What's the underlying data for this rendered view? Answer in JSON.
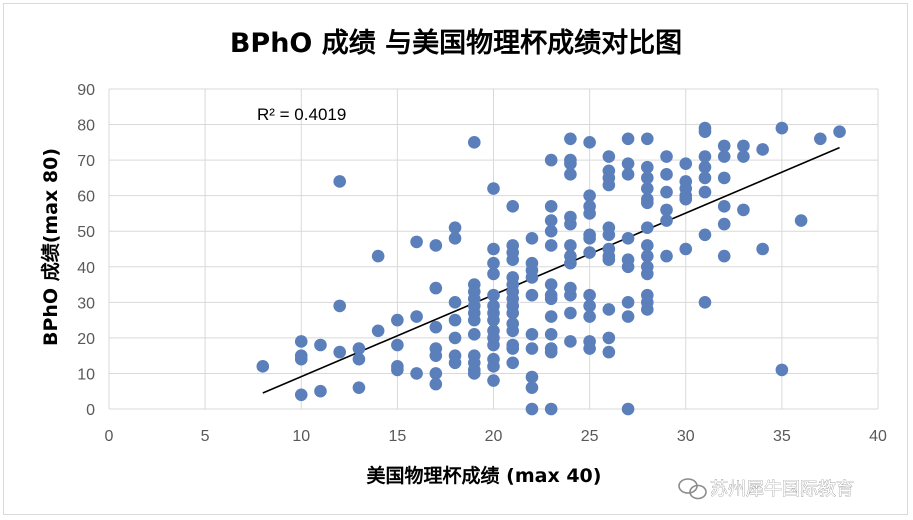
{
  "chart_data": {
    "type": "scatter",
    "title": "BPhO 成绩 与美国物理杯成绩对比图",
    "xlabel": "美国物理杯成绩 (max 40)",
    "ylabel": "BPhO 成绩(max 80)",
    "xlim": [
      0,
      40
    ],
    "ylim": [
      0,
      90
    ],
    "x_ticks": [
      0,
      5,
      10,
      15,
      20,
      25,
      30,
      35,
      40
    ],
    "y_ticks": [
      0,
      10,
      20,
      30,
      40,
      50,
      60,
      70,
      80,
      90
    ],
    "grid": true,
    "point_color": "#5b7fba",
    "trendline": {
      "type": "linear",
      "r2_label": "R² = 0.4019",
      "x": [
        8,
        38
      ],
      "y": [
        4.5,
        73.5
      ],
      "color": "#000000"
    },
    "points": [
      [
        8,
        12
      ],
      [
        10,
        19
      ],
      [
        10,
        15
      ],
      [
        10,
        14
      ],
      [
        10,
        4
      ],
      [
        11,
        18
      ],
      [
        11,
        5
      ],
      [
        12,
        64
      ],
      [
        12,
        29
      ],
      [
        12,
        16
      ],
      [
        13,
        17
      ],
      [
        13,
        14
      ],
      [
        13,
        6
      ],
      [
        14,
        43
      ],
      [
        14,
        22
      ],
      [
        15,
        25
      ],
      [
        15,
        18
      ],
      [
        15,
        12
      ],
      [
        15,
        11
      ],
      [
        16,
        47
      ],
      [
        16,
        26
      ],
      [
        16,
        10
      ],
      [
        17,
        46
      ],
      [
        17,
        34
      ],
      [
        17,
        23
      ],
      [
        17,
        17
      ],
      [
        17,
        15
      ],
      [
        17,
        10
      ],
      [
        17,
        7
      ],
      [
        18,
        51
      ],
      [
        18,
        48
      ],
      [
        18,
        30
      ],
      [
        18,
        25
      ],
      [
        18,
        20
      ],
      [
        18,
        15
      ],
      [
        18,
        13
      ],
      [
        19,
        75
      ],
      [
        19,
        35
      ],
      [
        19,
        33
      ],
      [
        19,
        31
      ],
      [
        19,
        29
      ],
      [
        19,
        27
      ],
      [
        19,
        25
      ],
      [
        19,
        21
      ],
      [
        19,
        15
      ],
      [
        19,
        13
      ],
      [
        19,
        11
      ],
      [
        19,
        10
      ],
      [
        20,
        62
      ],
      [
        20,
        45
      ],
      [
        20,
        41
      ],
      [
        20,
        38
      ],
      [
        20,
        32
      ],
      [
        20,
        29
      ],
      [
        20,
        27
      ],
      [
        20,
        25
      ],
      [
        20,
        22
      ],
      [
        20,
        20
      ],
      [
        20,
        18
      ],
      [
        20,
        14
      ],
      [
        20,
        12
      ],
      [
        20,
        8
      ],
      [
        21,
        57
      ],
      [
        21,
        46
      ],
      [
        21,
        44
      ],
      [
        21,
        42
      ],
      [
        21,
        37
      ],
      [
        21,
        35
      ],
      [
        21,
        33
      ],
      [
        21,
        31
      ],
      [
        21,
        29
      ],
      [
        21,
        27
      ],
      [
        21,
        24
      ],
      [
        21,
        22
      ],
      [
        21,
        18
      ],
      [
        21,
        17
      ],
      [
        21,
        13
      ],
      [
        22,
        48
      ],
      [
        22,
        41
      ],
      [
        22,
        39
      ],
      [
        22,
        37
      ],
      [
        22,
        32
      ],
      [
        22,
        21
      ],
      [
        22,
        17
      ],
      [
        22,
        9
      ],
      [
        22,
        6
      ],
      [
        22,
        0
      ],
      [
        23,
        70
      ],
      [
        23,
        57
      ],
      [
        23,
        53
      ],
      [
        23,
        50
      ],
      [
        23,
        46
      ],
      [
        23,
        35
      ],
      [
        23,
        32
      ],
      [
        23,
        31
      ],
      [
        23,
        26
      ],
      [
        23,
        21
      ],
      [
        23,
        17
      ],
      [
        23,
        16
      ],
      [
        23,
        0
      ],
      [
        24,
        76
      ],
      [
        24,
        70
      ],
      [
        24,
        69
      ],
      [
        24,
        66
      ],
      [
        24,
        54
      ],
      [
        24,
        52
      ],
      [
        24,
        46
      ],
      [
        24,
        43
      ],
      [
        24,
        41
      ],
      [
        24,
        34
      ],
      [
        24,
        32
      ],
      [
        24,
        27
      ],
      [
        24,
        19
      ],
      [
        25,
        75
      ],
      [
        25,
        60
      ],
      [
        25,
        57
      ],
      [
        25,
        55
      ],
      [
        25,
        49
      ],
      [
        25,
        48
      ],
      [
        25,
        44
      ],
      [
        25,
        32
      ],
      [
        25,
        29
      ],
      [
        25,
        26
      ],
      [
        25,
        19
      ],
      [
        25,
        17
      ],
      [
        26,
        71
      ],
      [
        26,
        67
      ],
      [
        26,
        65
      ],
      [
        26,
        63
      ],
      [
        26,
        51
      ],
      [
        26,
        49
      ],
      [
        26,
        45
      ],
      [
        26,
        43
      ],
      [
        26,
        42
      ],
      [
        26,
        28
      ],
      [
        26,
        20
      ],
      [
        26,
        16
      ],
      [
        27,
        76
      ],
      [
        27,
        69
      ],
      [
        27,
        66
      ],
      [
        27,
        48
      ],
      [
        27,
        42
      ],
      [
        27,
        40
      ],
      [
        27,
        30
      ],
      [
        27,
        26
      ],
      [
        27,
        0
      ],
      [
        28,
        76
      ],
      [
        28,
        68
      ],
      [
        28,
        65
      ],
      [
        28,
        62
      ],
      [
        28,
        59
      ],
      [
        28,
        58
      ],
      [
        28,
        51
      ],
      [
        28,
        46
      ],
      [
        28,
        43
      ],
      [
        28,
        40
      ],
      [
        28,
        38
      ],
      [
        28,
        32
      ],
      [
        28,
        30
      ],
      [
        28,
        28
      ],
      [
        29,
        71
      ],
      [
        29,
        66
      ],
      [
        29,
        61
      ],
      [
        29,
        56
      ],
      [
        29,
        53
      ],
      [
        29,
        43
      ],
      [
        30,
        69
      ],
      [
        30,
        64
      ],
      [
        30,
        62
      ],
      [
        30,
        60
      ],
      [
        30,
        59
      ],
      [
        30,
        45
      ],
      [
        31,
        79
      ],
      [
        31,
        78
      ],
      [
        31,
        71
      ],
      [
        31,
        68
      ],
      [
        31,
        65
      ],
      [
        31,
        61
      ],
      [
        31,
        49
      ],
      [
        31,
        30
      ],
      [
        32,
        74
      ],
      [
        32,
        71
      ],
      [
        32,
        65
      ],
      [
        32,
        57
      ],
      [
        32,
        52
      ],
      [
        32,
        43
      ],
      [
        33,
        74
      ],
      [
        33,
        71
      ],
      [
        33,
        56
      ],
      [
        34,
        73
      ],
      [
        34,
        45
      ],
      [
        35,
        79
      ],
      [
        35,
        11
      ],
      [
        36,
        53
      ],
      [
        37,
        76
      ],
      [
        38,
        78
      ]
    ]
  },
  "watermark": {
    "text": "苏州犀牛国际教育"
  }
}
